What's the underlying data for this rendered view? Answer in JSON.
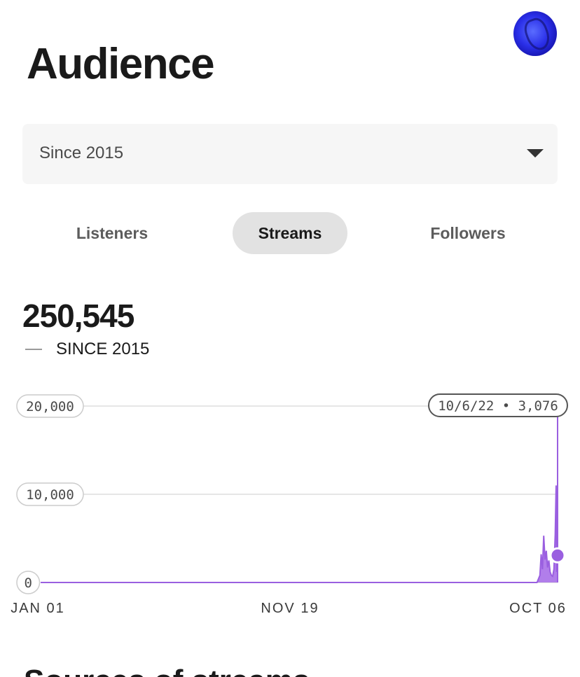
{
  "header": {
    "title": "Audience",
    "avatar_icon": "artist-avatar"
  },
  "range_select": {
    "value": "Since 2015",
    "icon": "caret-down-icon"
  },
  "tabs": [
    {
      "label": "Listeners",
      "selected": false
    },
    {
      "label": "Streams",
      "selected": true
    },
    {
      "label": "Followers",
      "selected": false
    }
  ],
  "metric": {
    "value": "250,545",
    "legend_label": "SINCE 2015"
  },
  "colors": {
    "series": "#a870e8",
    "series_line": "#9a5fe0",
    "grid": "#dddddd",
    "selected_tab_bg": "#e2e2e2"
  },
  "chart_data": {
    "type": "area",
    "x_tick_labels": [
      "JAN 01",
      "NOV 19",
      "OCT 06"
    ],
    "y_tick_labels": [
      "20,000",
      "10,000",
      "0"
    ],
    "ylim": [
      0,
      20000
    ],
    "grid": true,
    "series": [
      {
        "x": [
          "2015-01-01",
          "2022-06-15",
          "2022-07-01",
          "2022-07-08",
          "2022-07-15",
          "2022-07-22",
          "2022-07-29",
          "2022-08-05",
          "2022-08-12",
          "2022-08-19",
          "2022-08-26",
          "2022-09-02",
          "2022-09-09",
          "2022-09-16",
          "2022-09-23",
          "2022-09-28",
          "2022-10-01",
          "2022-10-03",
          "2022-10-06"
        ],
        "y": [
          0,
          0,
          800,
          3200,
          1500,
          5300,
          2600,
          3600,
          1700,
          2500,
          1200,
          800,
          700,
          1500,
          5400,
          11000,
          1200,
          3000,
          3076
        ]
      }
    ],
    "tooltip": {
      "date": "10/6/22",
      "value": "3,076"
    }
  },
  "bottom_peek": "Sources of streams"
}
